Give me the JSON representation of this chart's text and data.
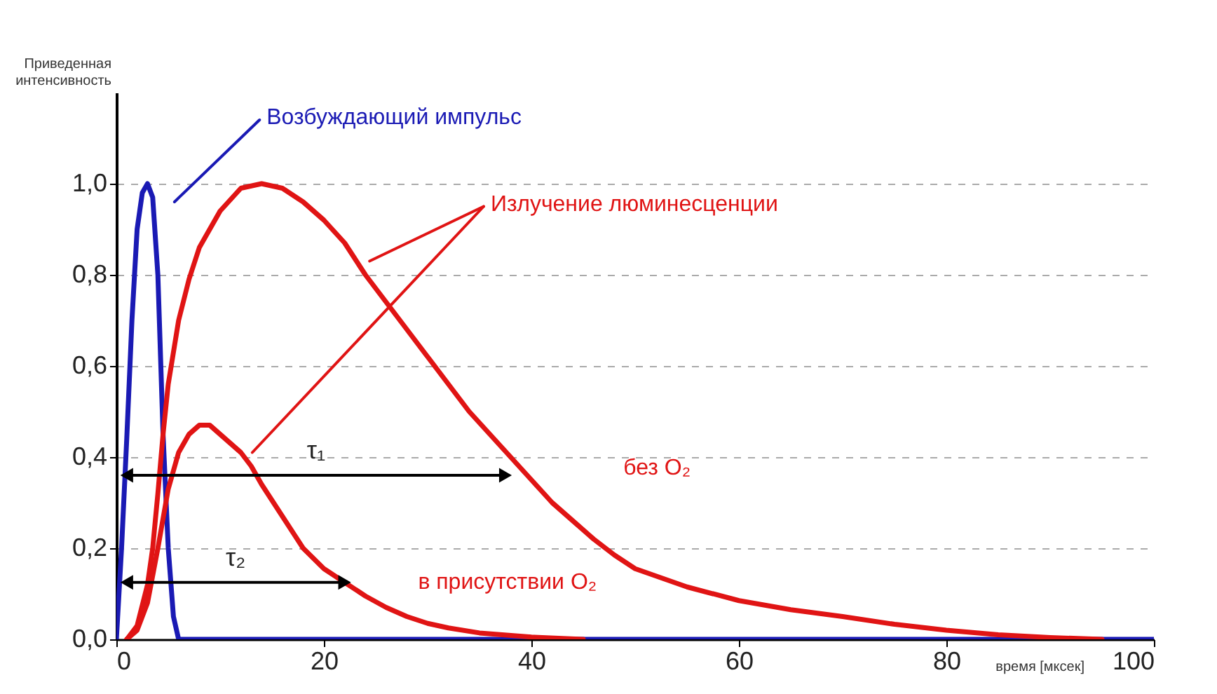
{
  "chart_data": {
    "type": "line",
    "xlabel": "время [мксек]",
    "ylabel": "Приведенная интенсивность",
    "xlim": [
      0,
      100
    ],
    "xticks": [
      0,
      20,
      40,
      60,
      80,
      100
    ],
    "ylim": [
      0,
      1.2
    ],
    "yticks": [
      {
        "value": 0,
        "label": "0,0"
      },
      {
        "value": 0.2,
        "label": "0,2"
      },
      {
        "value": 0.4,
        "label": "0,4"
      },
      {
        "value": 0.6,
        "label": "0,6"
      },
      {
        "value": 0.8,
        "label": "0,8"
      },
      {
        "value": 1,
        "label": "1,0"
      }
    ],
    "grid": "y",
    "legend": false,
    "series": [
      {
        "color": "#1a1ab4",
        "x": [
          0,
          0.5,
          1,
          1.5,
          2,
          2.5,
          3,
          3.5,
          4,
          4.5,
          5,
          5.5,
          6,
          100
        ],
        "values": [
          0,
          0.2,
          0.44,
          0.7,
          0.9,
          0.98,
          1.0,
          0.97,
          0.8,
          0.45,
          0.2,
          0.05,
          0,
          0
        ]
      },
      {
        "name": "без O₂",
        "color": "#e01414",
        "x": [
          1,
          2,
          3,
          3.5,
          4,
          4.5,
          5,
          6,
          7,
          8,
          10,
          12,
          14,
          16,
          18,
          20,
          22,
          24,
          26,
          28,
          30,
          32,
          34,
          36,
          38,
          40,
          42,
          44,
          46,
          48,
          50,
          55,
          60,
          65,
          70,
          75,
          80,
          85,
          90,
          95
        ],
        "values": [
          0,
          0.03,
          0.12,
          0.2,
          0.32,
          0.45,
          0.56,
          0.7,
          0.79,
          0.86,
          0.94,
          0.99,
          1.0,
          0.99,
          0.96,
          0.92,
          0.87,
          0.8,
          0.74,
          0.68,
          0.62,
          0.56,
          0.5,
          0.45,
          0.4,
          0.35,
          0.3,
          0.26,
          0.22,
          0.185,
          0.155,
          0.115,
          0.085,
          0.065,
          0.05,
          0.033,
          0.02,
          0.01,
          0.004,
          0
        ]
      },
      {
        "name": "в присутствии O₂",
        "color": "#e01414",
        "x": [
          1,
          2,
          3,
          4,
          5,
          6,
          7,
          8,
          9,
          10,
          11,
          12,
          13,
          14,
          16,
          18,
          20,
          22,
          24,
          26,
          28,
          30,
          32,
          35,
          40,
          45
        ],
        "values": [
          0,
          0.02,
          0.08,
          0.2,
          0.33,
          0.41,
          0.45,
          0.47,
          0.47,
          0.45,
          0.43,
          0.41,
          0.38,
          0.34,
          0.27,
          0.2,
          0.155,
          0.125,
          0.095,
          0.07,
          0.05,
          0.035,
          0.025,
          0.014,
          0.005,
          0
        ]
      },
      {
        "color": "#1a1ab4",
        "marker": "none",
        "x": [
          13.8,
          5.6
        ],
        "values": [
          1.14,
          0.96
        ]
      },
      {
        "color": "#e01414",
        "marker": "none",
        "x": [
          35.4,
          24.4
        ],
        "values": [
          0.95,
          0.83
        ]
      },
      {
        "color": "#e01414",
        "marker": "none",
        "x": [
          35.4,
          13.1
        ],
        "values": [
          0.95,
          0.41
        ]
      },
      {
        "color": "#000000",
        "marker": "triangle",
        "x": [
          1,
          37.5
        ],
        "values": [
          0.36,
          0.36
        ]
      },
      {
        "color": "#000000",
        "marker": "triangle",
        "x": [
          1,
          22
        ],
        "values": [
          0.125,
          0.125
        ]
      }
    ],
    "annotations": [
      "Возбуждающий импульс",
      "Излучение люминесценции",
      "τ₁",
      "τ₂"
    ]
  }
}
